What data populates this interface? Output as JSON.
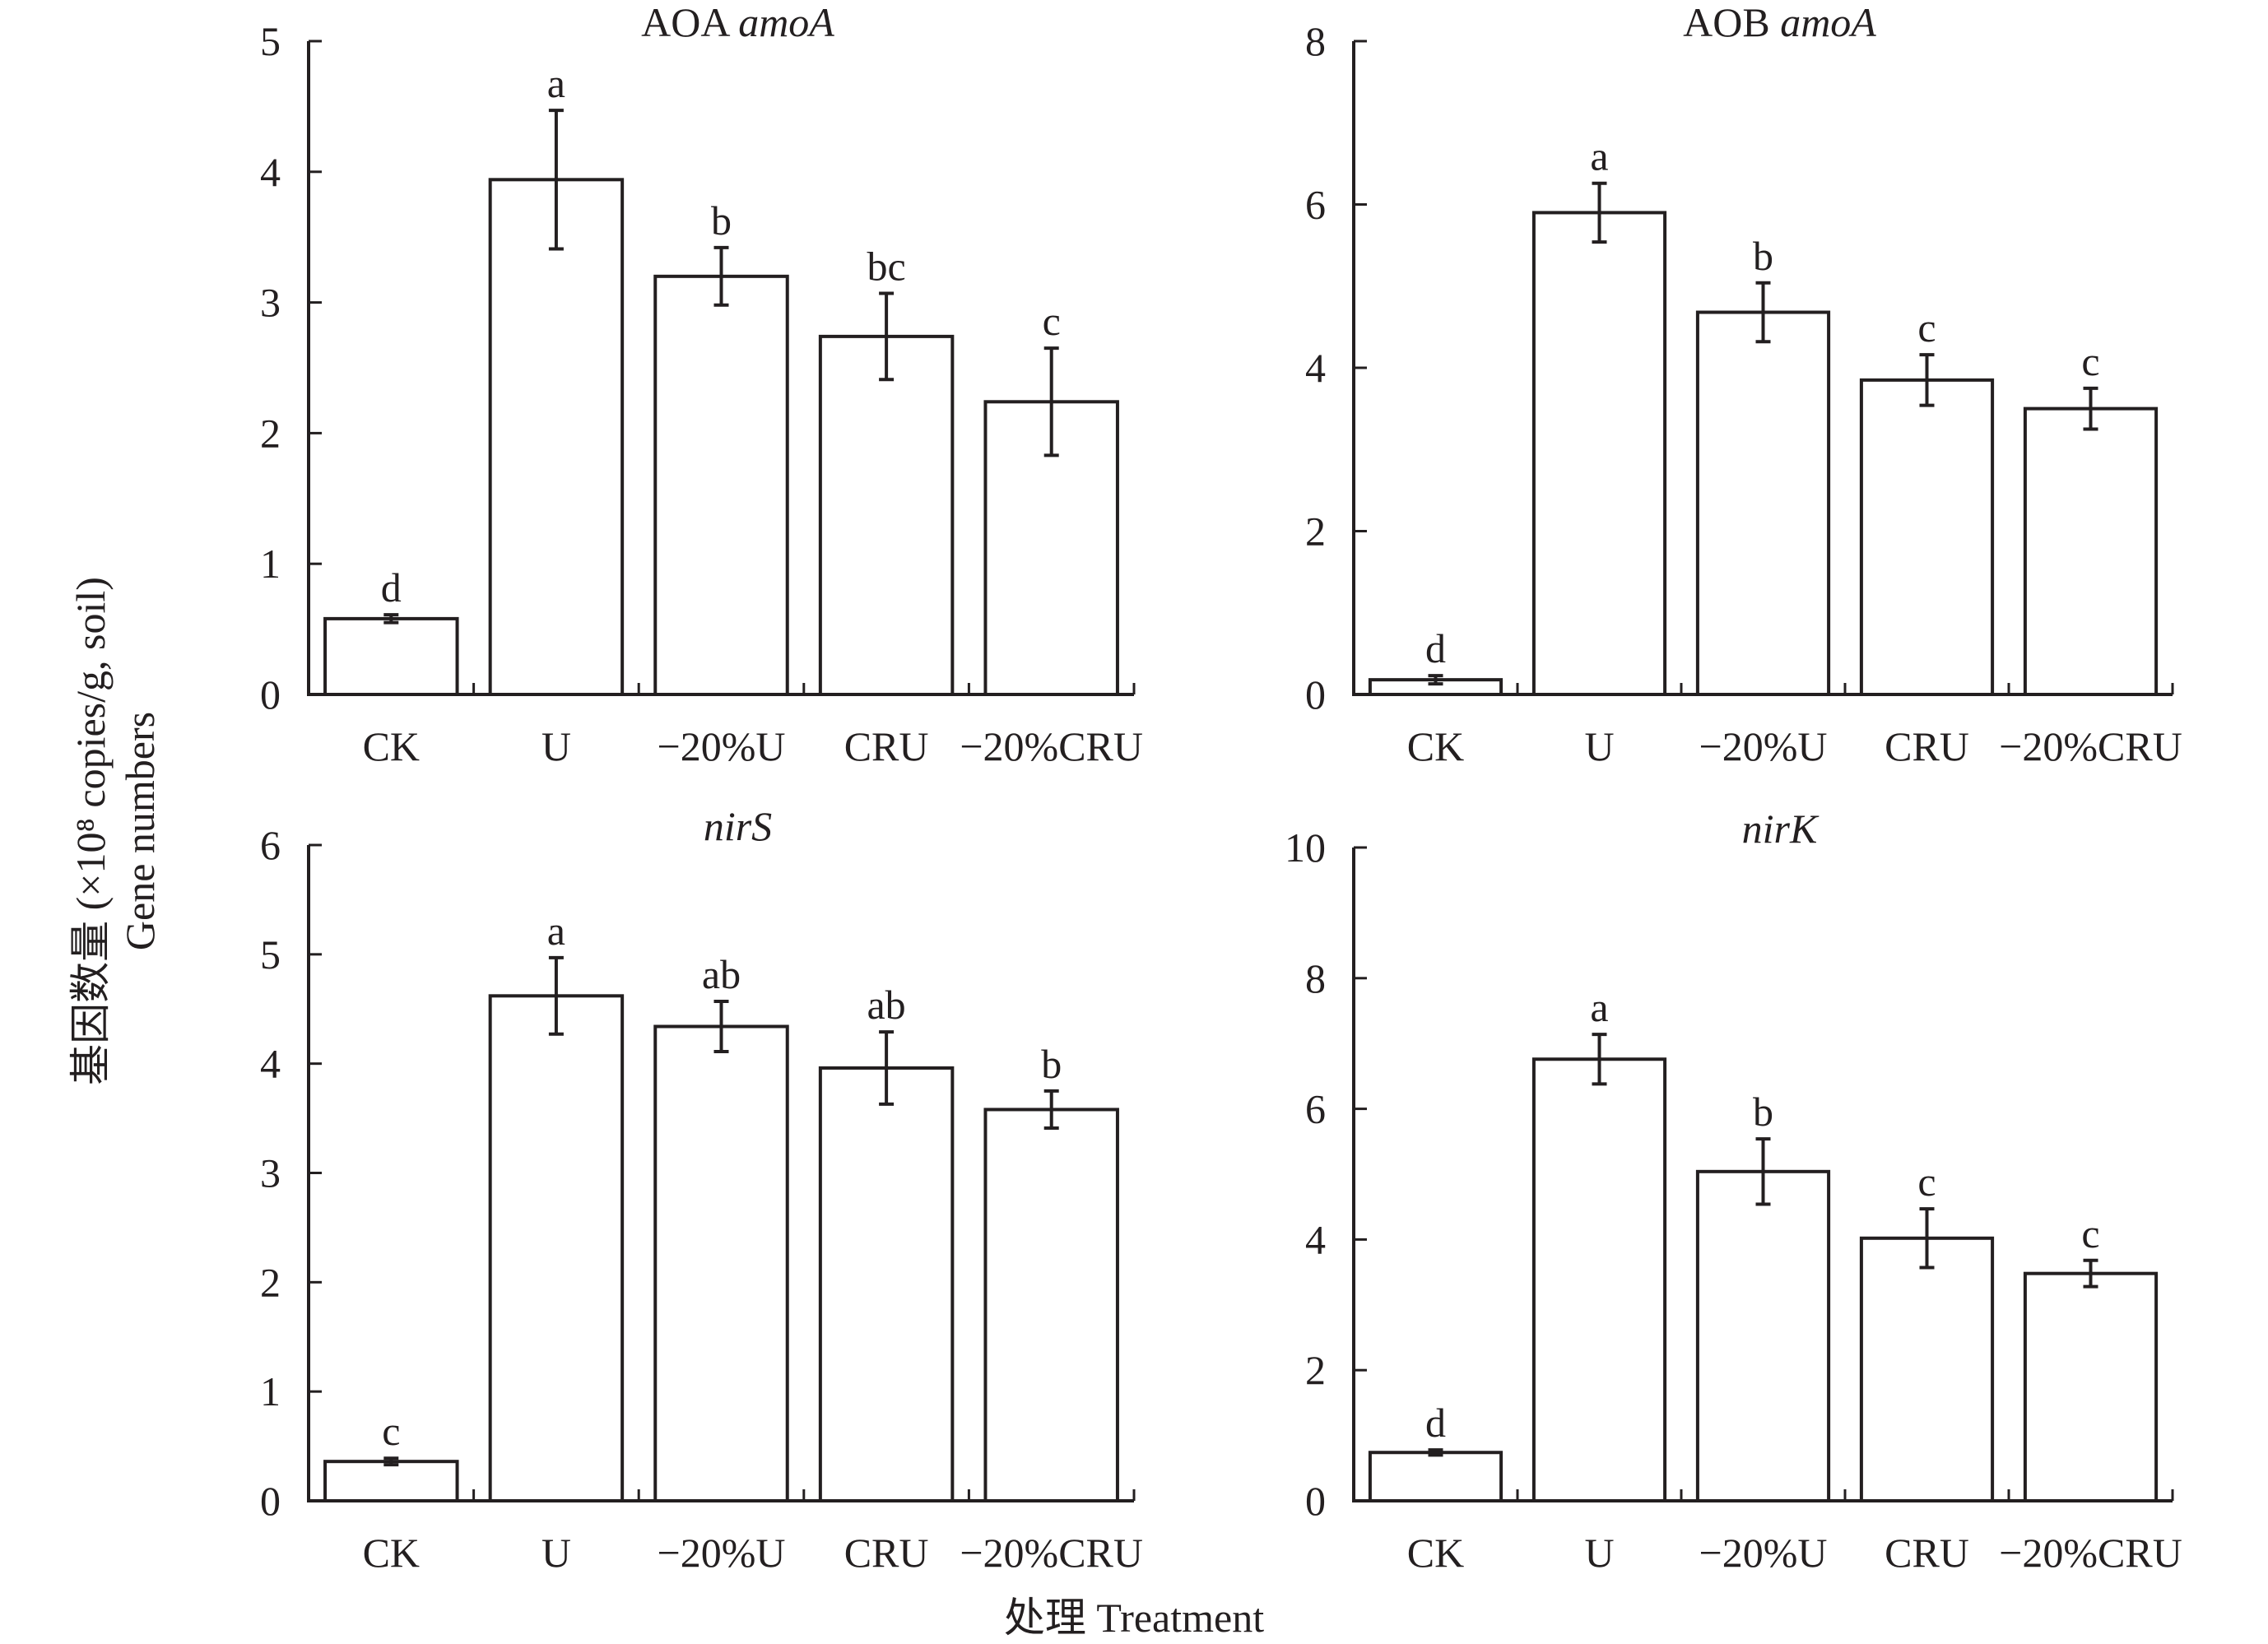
{
  "figure": {
    "ylabel_line1": "基因数量 (×10⁸ copies/g, soil)",
    "ylabel_line2": "Gene numbers",
    "xlabel": "处理 Treatment"
  },
  "chart_data": [
    {
      "type": "bar",
      "title": "AOA amoA",
      "title_parts": [
        "AOA ",
        "amoA"
      ],
      "categories": [
        "CK",
        "U",
        "−20%U",
        "CRU",
        "−20%CRU"
      ],
      "values": [
        0.58,
        3.94,
        3.2,
        2.74,
        2.24
      ],
      "errors": [
        0.03,
        0.53,
        0.22,
        0.33,
        0.41
      ],
      "letters": [
        "d",
        "a",
        "b",
        "bc",
        "c"
      ],
      "ylim": [
        0,
        5
      ],
      "yticks": [
        0,
        1,
        2,
        3,
        4,
        5
      ],
      "ylabel": "基因数量 (×10⁸ copies/g, soil) Gene numbers",
      "xlabel": "处理 Treatment"
    },
    {
      "type": "bar",
      "title": "AOB amoA",
      "title_parts": [
        "AOB ",
        "amoA"
      ],
      "categories": [
        "CK",
        "U",
        "−20%U",
        "CRU",
        "−20%CRU"
      ],
      "values": [
        0.18,
        5.9,
        4.68,
        3.85,
        3.5
      ],
      "errors": [
        0.05,
        0.36,
        0.36,
        0.31,
        0.25
      ],
      "letters": [
        "d",
        "a",
        "b",
        "c",
        "c"
      ],
      "ylim": [
        0,
        8
      ],
      "yticks": [
        0,
        2,
        4,
        6,
        8
      ],
      "ylabel": "基因数量 (×10⁸ copies/g, soil) Gene numbers",
      "xlabel": "处理 Treatment"
    },
    {
      "type": "bar",
      "title": "nirS",
      "title_parts": [
        "",
        "nirS"
      ],
      "categories": [
        "CK",
        "U",
        "−20%U",
        "CRU",
        "−20%CRU"
      ],
      "values": [
        0.36,
        4.62,
        4.34,
        3.96,
        3.58
      ],
      "errors": [
        0.03,
        0.35,
        0.23,
        0.33,
        0.17
      ],
      "letters": [
        "c",
        "a",
        "ab",
        "ab",
        "b"
      ],
      "ylim": [
        0,
        6
      ],
      "yticks": [
        0,
        1,
        2,
        3,
        4,
        5,
        6
      ],
      "ylabel": "基因数量 (×10⁸ copies/g, soil) Gene numbers",
      "xlabel": "处理 Treatment"
    },
    {
      "type": "bar",
      "title": "nirK",
      "title_parts": [
        "",
        "nirK"
      ],
      "categories": [
        "CK",
        "U",
        "−20%U",
        "CRU",
        "−20%CRU"
      ],
      "values": [
        0.74,
        6.76,
        5.04,
        4.02,
        3.48
      ],
      "errors": [
        0.04,
        0.38,
        0.5,
        0.45,
        0.2
      ],
      "letters": [
        "d",
        "a",
        "b",
        "c",
        "c"
      ],
      "ylim": [
        0,
        10
      ],
      "yticks": [
        0,
        2,
        4,
        6,
        8,
        10
      ],
      "ylabel": "基因数量 (×10⁸ copies/g, soil) Gene numbers",
      "xlabel": "处理 Treatment"
    }
  ]
}
